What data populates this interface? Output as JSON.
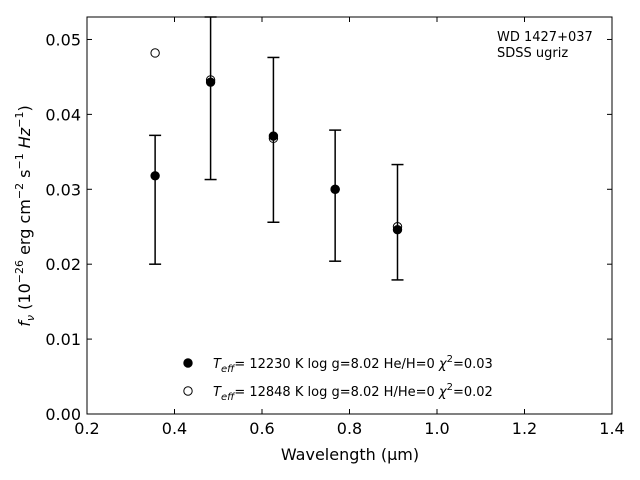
{
  "chart_data": {
    "type": "scatter",
    "xlim": [
      0.2,
      1.4
    ],
    "ylim": [
      0.0,
      0.053
    ],
    "x_ticks": [
      "0.2",
      "0.4",
      "0.6",
      "0.8",
      "1.0",
      "1.2",
      "1.4"
    ],
    "y_ticks": [
      "0.00",
      "0.01",
      "0.02",
      "0.03",
      "0.04",
      "0.05"
    ],
    "xlabel": "Wavelength (μm)",
    "ylabel_parts": [
      "f",
      "ν",
      " (10",
      "−26",
      " erg cm",
      "−2",
      " s",
      "−1",
      " Hz",
      "−1",
      ")"
    ],
    "annotation": [
      "WD 1427+037",
      "SDSS ugriz"
    ],
    "observed": {
      "x": [
        0.3557,
        0.4825,
        0.6261,
        0.7672,
        0.9097
      ],
      "y": [
        0.0317,
        0.0445,
        0.037,
        0.03,
        0.0247
      ],
      "yerr_low": [
        0.02,
        0.0313,
        0.0256,
        0.0204,
        0.0179
      ],
      "yerr_high": [
        0.0372,
        0.053,
        0.0476,
        0.0379,
        0.0333
      ]
    },
    "series": [
      {
        "name": "Teff= 12230 K  log g=8.02  He/H=0  χ²=0.03",
        "marker": "filled-circle",
        "x": [
          0.3557,
          0.4825,
          0.6261,
          0.7672,
          0.9097
        ],
        "y": [
          0.0318,
          0.0443,
          0.0371,
          0.03,
          0.0246
        ]
      },
      {
        "name": "Teff= 12848 K  log g=8.02  H/He=0  χ²=0.02",
        "marker": "open-circle",
        "x": [
          0.3557,
          0.4825,
          0.6261,
          0.7672,
          0.9097
        ],
        "y": [
          0.0482,
          0.0446,
          0.0368,
          0.03,
          0.025
        ]
      }
    ],
    "legend": {
      "placement": "lower-center",
      "entries": [
        {
          "teff": "12230 K",
          "logg": "log g=8.02",
          "comp": "He/H=0",
          "chi": "=0.03"
        },
        {
          "teff": "12848 K",
          "logg": "log g=8.02",
          "comp": "H/He=0",
          "chi": "=0.02"
        }
      ]
    },
    "colors": {
      "marker": "#000000",
      "axes": "#000000"
    }
  }
}
